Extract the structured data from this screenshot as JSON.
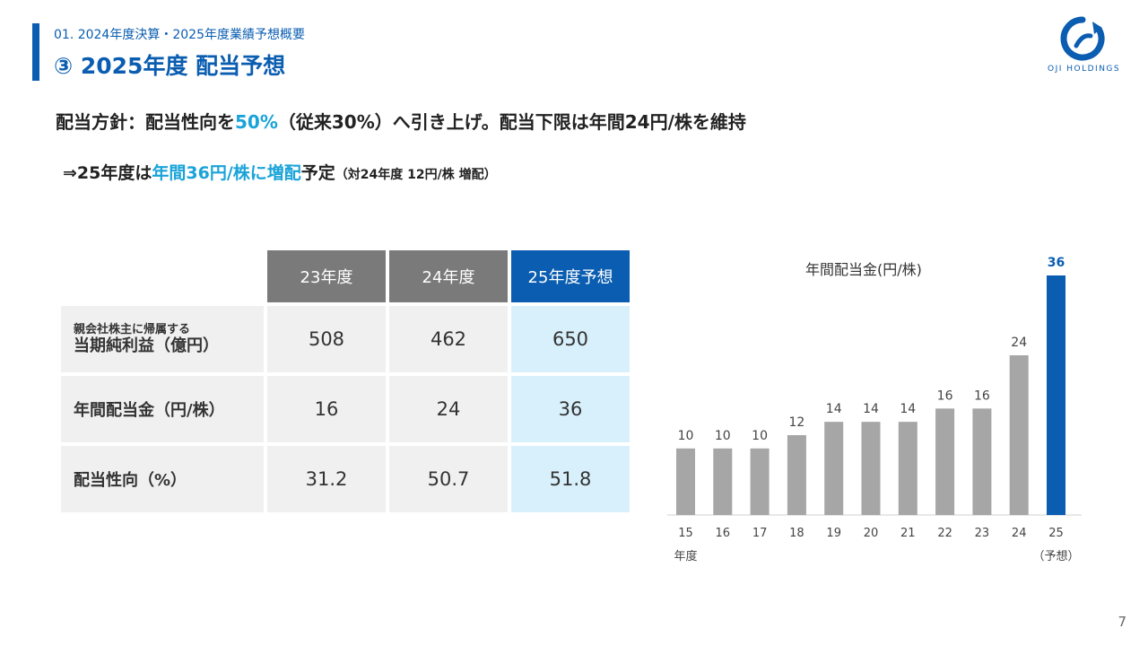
{
  "header": {
    "breadcrumb": "01. 2024年度決算・2025年度業績予想概要",
    "title": "③ 2025年度 配当予想",
    "logo_text": "OJI HOLDINGS"
  },
  "policy": {
    "part1": "配当方針：配当性向を",
    "highlight": "50%",
    "part2": "（従来30%）へ引き上げ。配当下限は年間24円/株を維持"
  },
  "forecast": {
    "part1": "⇒25年度は",
    "highlight": "年間36円/株に増配",
    "part2": "予定",
    "note": "（対24年度 12円/株 増配）"
  },
  "table": {
    "headers": [
      "23年度",
      "24年度",
      "25年度予想"
    ],
    "rows": [
      {
        "label_small": "親会社株主に帰属する",
        "label": "当期純利益（億円）",
        "values": [
          "508",
          "462",
          "650"
        ]
      },
      {
        "label_small": "",
        "label": "年間配当金（円/株）",
        "values": [
          "16",
          "24",
          "36"
        ]
      },
      {
        "label_small": "",
        "label": "配当性向（%）",
        "values": [
          "31.2",
          "50.7",
          "51.8"
        ]
      }
    ]
  },
  "chart_data": {
    "type": "bar",
    "title": "年間配当金(円/株)",
    "categories": [
      "15",
      "16",
      "17",
      "18",
      "19",
      "20",
      "21",
      "22",
      "23",
      "24",
      "25"
    ],
    "values": [
      10,
      10,
      10,
      12,
      14,
      14,
      14,
      16,
      16,
      24,
      36
    ],
    "xlabel": "年度",
    "forecast_note": "（予想）",
    "highlight_index": 10,
    "colors": {
      "bar": "#a6a6a6",
      "highlight": "#0a5db0",
      "highlight_label": "#0a5db0"
    },
    "ylim": [
      0,
      36
    ]
  },
  "page_number": "7"
}
